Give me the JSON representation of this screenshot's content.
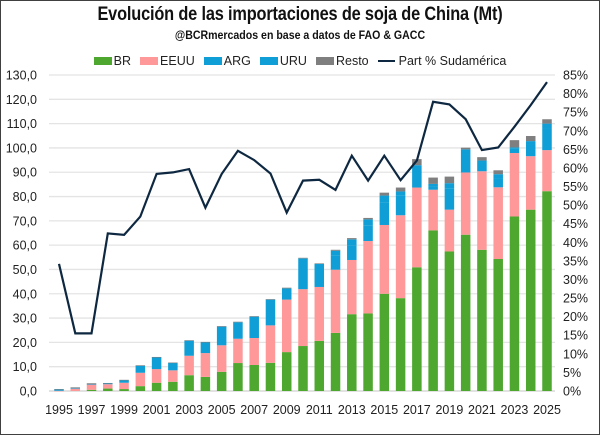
{
  "chart_data": {
    "type": "bar",
    "subtype": "stacked-bar-with-line-secondary-axis",
    "title": "Evolución de las importaciones de soja de China (Mt)",
    "subtitle": "@BCRmercados  en base a datos de FAO & GACC",
    "xlabel": "",
    "ylabel": "",
    "ylim": [
      0,
      130
    ],
    "y2lim": [
      0,
      85
    ],
    "y_ticks": [
      "0,0",
      "10,0",
      "20,0",
      "30,0",
      "40,0",
      "50,0",
      "60,0",
      "70,0",
      "80,0",
      "90,0",
      "100,0",
      "110,0",
      "120,0",
      "130,0"
    ],
    "y2_ticks": [
      "0%",
      "5%",
      "10%",
      "15%",
      "20%",
      "25%",
      "30%",
      "35%",
      "40%",
      "45%",
      "50%",
      "55%",
      "60%",
      "65%",
      "70%",
      "75%",
      "80%",
      "85%"
    ],
    "x_tick_labels": [
      "1995",
      "1997",
      "1999",
      "2001",
      "2003",
      "2005",
      "2007",
      "2009",
      "2011",
      "2013",
      "2015",
      "2017",
      "2019",
      "2021",
      "2023",
      "2025"
    ],
    "grid": true,
    "legend_position": "top",
    "categories": [
      "1995",
      "1996",
      "1997",
      "1998",
      "1999",
      "2000",
      "2001",
      "2002",
      "2003",
      "2004",
      "2005",
      "2006",
      "2007",
      "2008",
      "2009",
      "2010",
      "2011",
      "2012",
      "2013",
      "2014",
      "2015",
      "2016",
      "2017",
      "2018",
      "2019",
      "2020",
      "2021",
      "2022",
      "2023",
      "2024",
      "2025"
    ],
    "series": [
      {
        "name": "BR",
        "kind": "bar",
        "color": "#4ea72e",
        "values": [
          0,
          0,
          0.5,
          1.0,
          0.8,
          2.0,
          3.4,
          3.8,
          6.5,
          5.8,
          7.9,
          11.5,
          10.7,
          11.6,
          16.0,
          18.5,
          20.6,
          23.9,
          31.6,
          31.9,
          40.0,
          38.2,
          50.9,
          66.1,
          57.4,
          64.3,
          58.1,
          54.3,
          71.8,
          74.6,
          82.2
        ]
      },
      {
        "name": "EEUU",
        "kind": "bar",
        "color": "#ff9999",
        "values": [
          0.1,
          1.0,
          2.3,
          1.8,
          2.6,
          5.5,
          5.6,
          4.7,
          8.0,
          9.8,
          10.9,
          10.0,
          11.1,
          15.4,
          21.6,
          23.4,
          22.2,
          26.0,
          22.3,
          29.8,
          28.3,
          34.1,
          32.8,
          16.7,
          17.2,
          25.6,
          32.3,
          29.5,
          26.1,
          22.0,
          16.9
        ]
      },
      {
        "name": "ARG",
        "kind": "bar",
        "color": "#0f9ed5",
        "values": [
          0.6,
          0.4,
          0.1,
          0.4,
          1.1,
          2.9,
          4.9,
          3.1,
          6.2,
          4.4,
          7.7,
          6.8,
          8.8,
          10.6,
          4.6,
          12.5,
          9.3,
          5.9,
          6.1,
          6.5,
          9.4,
          8.0,
          6.6,
          1.5,
          8.8,
          7.4,
          3.8,
          3.6,
          1.8,
          4.8,
          8.9
        ]
      },
      {
        "name": "URU",
        "kind": "bar",
        "color": "#0f9ed5",
        "values": [
          0,
          0,
          0,
          0,
          0,
          0,
          0,
          0,
          0,
          0,
          0,
          0,
          0,
          0,
          0,
          0.2,
          0.2,
          1.9,
          2.4,
          2.4,
          2.7,
          1.8,
          2.6,
          0.9,
          2.1,
          2.1,
          0.6,
          1.8,
          0.5,
          1.4,
          2.0
        ]
      },
      {
        "name": "Resto",
        "kind": "bar",
        "color": "#7f7f7f",
        "values": [
          0.1,
          0.1,
          0.3,
          0.1,
          0.1,
          0.2,
          0.1,
          0.1,
          0.2,
          0.2,
          0.2,
          0.2,
          0.2,
          0.2,
          0.3,
          0.2,
          0.2,
          0.4,
          0.5,
          0.6,
          1.2,
          1.6,
          2.5,
          2.6,
          2.7,
          0.7,
          1.4,
          1.6,
          3.0,
          2.1,
          1.8
        ]
      },
      {
        "name": "Part % Sudamérica",
        "kind": "line",
        "axis": "secondary",
        "color": "#0e2841",
        "unit": "%",
        "values": [
          34.2,
          15.5,
          15.5,
          42.4,
          42.0,
          46.9,
          58.4,
          58.8,
          59.7,
          49.3,
          58.4,
          64.6,
          62.1,
          58.5,
          48.0,
          56.6,
          56.8,
          54.1,
          63.3,
          56.6,
          63.3,
          56.7,
          62.0,
          77.8,
          77.1,
          73.1,
          64.8,
          65.5,
          71.1,
          76.9,
          83.1
        ]
      }
    ]
  }
}
